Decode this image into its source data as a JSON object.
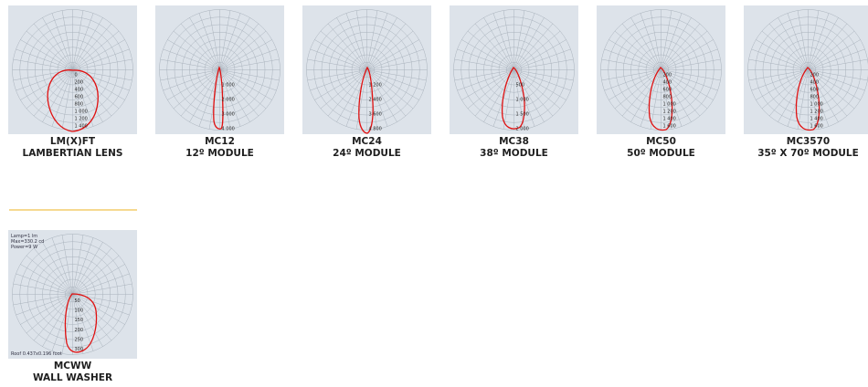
{
  "colors": {
    "panel_bg": "#dde3ea",
    "grid": "#a9b2bc",
    "curve": "#e01010",
    "divider": "#f6d990"
  },
  "products": [
    {
      "code": "LM(X)FT",
      "desc": "LAMBERTIAN LENS",
      "labels": [
        "0",
        "200",
        "400",
        "600",
        "800",
        "1 000",
        "1 200",
        "1 400"
      ]
    },
    {
      "code": "MC12",
      "desc": "12º MODULE",
      "labels": [
        "1 000",
        "2 000",
        "3 000",
        "4 000"
      ]
    },
    {
      "code": "MC24",
      "desc": "24º MODULE",
      "labels": [
        "1 200",
        "2 400",
        "3 600",
        "4 800"
      ]
    },
    {
      "code": "MC38",
      "desc": "38º MODULE",
      "labels": [
        "500",
        "1 000",
        "1 500",
        "2 000"
      ]
    },
    {
      "code": "MC50",
      "desc": "50º MODULE",
      "labels": [
        "200",
        "400",
        "600",
        "800",
        "1 000",
        "1 200",
        "1 400",
        "1 600"
      ]
    },
    {
      "code": "MC3570",
      "desc": "35º X 70º MODULE",
      "labels": [
        "200",
        "400",
        "600",
        "800",
        "1 000",
        "1 200",
        "1 400",
        "1 600"
      ]
    },
    {
      "code": "MCWW",
      "desc": "WALL WASHER",
      "labels": [
        "50",
        "100",
        "150",
        "200",
        "250",
        "300"
      ],
      "info": [
        "Lamp=1 lm",
        "Max=330.2 cd",
        "Power=9 W"
      ],
      "footer": "Roof 0.437x0.196 foot"
    }
  ]
}
